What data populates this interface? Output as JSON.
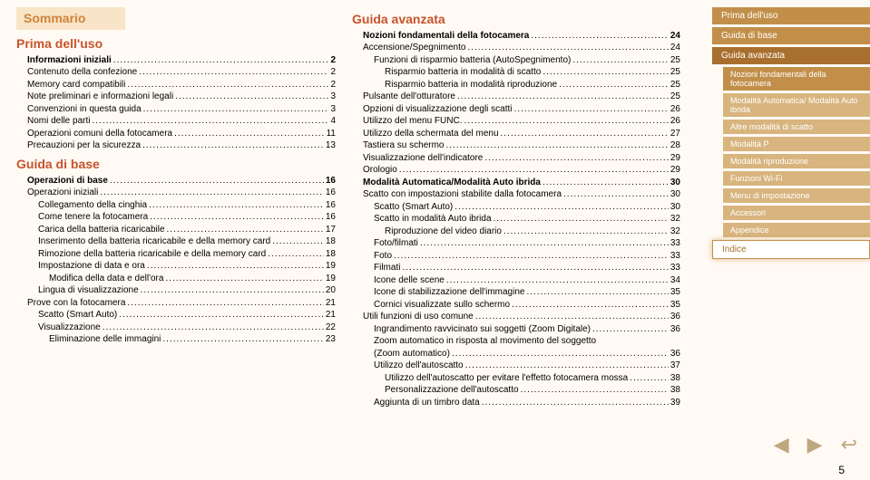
{
  "summary_label": "Sommario",
  "page_number": "5",
  "sidebar": {
    "top": [
      {
        "label": "Prima dell'uso",
        "cls": "nav-item"
      },
      {
        "label": "Guida di base",
        "cls": "nav-item"
      },
      {
        "label": "Guida avanzata",
        "cls": "nav-item active-dark"
      }
    ],
    "subs": [
      {
        "label": "Nozioni fondamentali della fotocamera",
        "cls": "nav-item sub"
      },
      {
        "label": "Modalità Automatica/ Modalità Auto ibrida",
        "cls": "nav-item sub light"
      },
      {
        "label": "Altre modalità di scatto",
        "cls": "nav-item sub light"
      },
      {
        "label": "Modalità P",
        "cls": "nav-item sub light"
      },
      {
        "label": "Modalità riproduzione",
        "cls": "nav-item sub light"
      },
      {
        "label": "Funzioni Wi-Fi",
        "cls": "nav-item sub light"
      },
      {
        "label": "Menu di impostazione",
        "cls": "nav-item sub light"
      },
      {
        "label": "Accessori",
        "cls": "nav-item sub light"
      },
      {
        "label": "Appendice",
        "cls": "nav-item sub light"
      }
    ],
    "bottom": [
      {
        "label": "Indice",
        "cls": "nav-item highlight"
      }
    ]
  },
  "left_col": [
    {
      "t": "h2",
      "text": "Prima dell'uso"
    },
    {
      "t": "line",
      "cls": "bold",
      "indent": 0,
      "label": "Informazioni iniziali",
      "pg": "2"
    },
    {
      "t": "line",
      "indent": 0,
      "label": "Contenuto della confezione",
      "pg": "2"
    },
    {
      "t": "line",
      "indent": 0,
      "label": "Memory card compatibili",
      "pg": "2"
    },
    {
      "t": "line",
      "indent": 0,
      "label": "Note preliminari e informazioni legali",
      "pg": "3"
    },
    {
      "t": "line",
      "indent": 0,
      "label": "Convenzioni in questa guida",
      "pg": "3"
    },
    {
      "t": "line",
      "indent": 0,
      "label": "Nomi delle parti",
      "pg": "4"
    },
    {
      "t": "line",
      "indent": 0,
      "label": "Operazioni comuni della fotocamera",
      "pg": "11"
    },
    {
      "t": "line",
      "indent": 0,
      "label": "Precauzioni per la sicurezza",
      "pg": "13"
    },
    {
      "t": "h2",
      "text": "Guida di base"
    },
    {
      "t": "line",
      "cls": "bold",
      "indent": 0,
      "label": "Operazioni di base",
      "pg": "16"
    },
    {
      "t": "line",
      "indent": 0,
      "label": "Operazioni iniziali",
      "pg": "16"
    },
    {
      "t": "line",
      "indent": 1,
      "label": "Collegamento della cinghia",
      "pg": "16"
    },
    {
      "t": "line",
      "indent": 1,
      "label": "Come tenere la fotocamera",
      "pg": "16"
    },
    {
      "t": "line",
      "indent": 1,
      "label": "Carica della batteria ricaricabile",
      "pg": "17"
    },
    {
      "t": "line",
      "indent": 1,
      "label": "Inserimento della batteria ricaricabile e della memory card",
      "pg": "18"
    },
    {
      "t": "line",
      "indent": 1,
      "label": "Rimozione della batteria ricaricabile e della memory card",
      "pg": "18"
    },
    {
      "t": "line",
      "indent": 1,
      "label": "Impostazione di data e ora",
      "pg": "19"
    },
    {
      "t": "line",
      "indent": 2,
      "label": "Modifica della data e dell'ora",
      "pg": "19"
    },
    {
      "t": "line",
      "indent": 1,
      "label": "Lingua di visualizzazione",
      "pg": "20"
    },
    {
      "t": "line",
      "indent": 0,
      "label": "Prove con la fotocamera",
      "pg": "21"
    },
    {
      "t": "line",
      "indent": 1,
      "label": "Scatto (Smart Auto)",
      "pg": "21"
    },
    {
      "t": "line",
      "indent": 1,
      "label": "Visualizzazione",
      "pg": "22"
    },
    {
      "t": "line",
      "indent": 2,
      "label": "Eliminazione delle immagini",
      "pg": "23"
    }
  ],
  "right_col": [
    {
      "t": "h2",
      "text": "Guida avanzata"
    },
    {
      "t": "line",
      "cls": "bold",
      "indent": 0,
      "label": "Nozioni fondamentali della fotocamera",
      "pg": "24"
    },
    {
      "t": "line",
      "indent": 0,
      "label": "Accensione/Spegnimento",
      "pg": "24"
    },
    {
      "t": "line",
      "indent": 1,
      "label": "Funzioni di risparmio batteria (AutoSpegnimento)",
      "pg": "25"
    },
    {
      "t": "line",
      "indent": 2,
      "label": "Risparmio batteria in modalità di scatto",
      "pg": "25"
    },
    {
      "t": "line",
      "indent": 2,
      "label": "Risparmio batteria in modalità riproduzione",
      "pg": "25"
    },
    {
      "t": "line",
      "indent": 0,
      "label": "Pulsante dell'otturatore",
      "pg": "25"
    },
    {
      "t": "line",
      "indent": 0,
      "label": "Opzioni di visualizzazione degli scatti",
      "pg": "26"
    },
    {
      "t": "line",
      "indent": 0,
      "label": "Utilizzo del menu FUNC.",
      "pg": "26"
    },
    {
      "t": "line",
      "indent": 0,
      "label": "Utilizzo della schermata del menu",
      "pg": "27"
    },
    {
      "t": "line",
      "indent": 0,
      "label": "Tastiera su schermo",
      "pg": "28"
    },
    {
      "t": "line",
      "indent": 0,
      "label": "Visualizzazione dell'indicatore",
      "pg": "29"
    },
    {
      "t": "line",
      "indent": 0,
      "label": "Orologio",
      "pg": "29"
    },
    {
      "t": "line",
      "cls": "bold",
      "indent": 0,
      "label": "Modalità Automatica/Modalità Auto ibrida",
      "pg": "30"
    },
    {
      "t": "line",
      "indent": 0,
      "label": "Scatto con impostazioni stabilite dalla fotocamera",
      "pg": "30"
    },
    {
      "t": "line",
      "indent": 1,
      "label": "Scatto (Smart Auto)",
      "pg": "30"
    },
    {
      "t": "line",
      "indent": 1,
      "label": "Scatto in modalità Auto ibrida",
      "pg": "32"
    },
    {
      "t": "line",
      "indent": 2,
      "label": "Riproduzione del video diario",
      "pg": "32"
    },
    {
      "t": "line",
      "indent": 1,
      "label": "Foto/filmati",
      "pg": "33"
    },
    {
      "t": "line",
      "indent": 1,
      "label": "Foto",
      "pg": "33"
    },
    {
      "t": "line",
      "indent": 1,
      "label": "Filmati",
      "pg": "33"
    },
    {
      "t": "line",
      "indent": 1,
      "label": "Icone delle scene",
      "pg": "34"
    },
    {
      "t": "line",
      "indent": 1,
      "label": "Icone di stabilizzazione dell'immagine",
      "pg": "35"
    },
    {
      "t": "line",
      "indent": 1,
      "label": "Cornici visualizzate sullo schermo",
      "pg": "35"
    },
    {
      "t": "line",
      "indent": 0,
      "label": "Utili funzioni di uso comune",
      "pg": "36"
    },
    {
      "t": "line",
      "indent": 1,
      "label": "Ingrandimento ravvicinato sui soggetti (Zoom Digitale)",
      "pg": "36"
    },
    {
      "t": "line",
      "indent": 1,
      "label": "Zoom automatico in risposta al movimento del soggetto",
      "pg": ""
    },
    {
      "t": "line",
      "indent": 1,
      "label": "(Zoom automatico)",
      "pg": "36"
    },
    {
      "t": "line",
      "indent": 1,
      "label": "Utilizzo dell'autoscatto",
      "pg": "37"
    },
    {
      "t": "line",
      "indent": 2,
      "label": "Utilizzo dell'autoscatto per evitare l'effetto fotocamera mossa",
      "pg": "38"
    },
    {
      "t": "line",
      "indent": 2,
      "label": "Personalizzazione dell'autoscatto",
      "pg": "38"
    },
    {
      "t": "line",
      "indent": 1,
      "label": "Aggiunta di un timbro data",
      "pg": "39"
    }
  ]
}
